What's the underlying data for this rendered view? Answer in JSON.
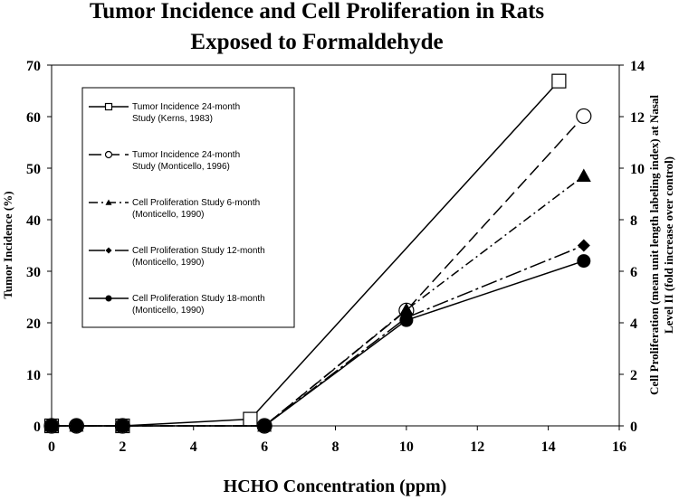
{
  "chart_data": {
    "type": "line",
    "title": [
      "Tumor Incidence and Cell Proliferation in Rats",
      "Exposed to Formaldehyde"
    ],
    "xlabel": "HCHO Concentration (ppm)",
    "ylabel": "Tumor Incidence (%)",
    "y2label": [
      "Cell Proliferation (mean unit length labeling index) at Nasal",
      "Level II (fold increase over control)"
    ],
    "xlim": [
      0,
      16
    ],
    "ylim": [
      0,
      70
    ],
    "y2lim": [
      0,
      14
    ],
    "xticks": [
      0,
      2,
      4,
      6,
      8,
      10,
      12,
      14,
      16
    ],
    "yticks": [
      0,
      10,
      20,
      30,
      40,
      50,
      60,
      70
    ],
    "y2ticks": [
      0,
      2,
      4,
      6,
      8,
      10,
      12,
      14
    ],
    "grid": false,
    "legend_position": "upper-left",
    "series": [
      {
        "name": "Tumor Incidence 24-month Study (Kerns, 1983)",
        "legend_lines": [
          "Tumor Incidence 24-month",
          "Study (Kerns, 1983)"
        ],
        "axis": "left",
        "marker": "square-open",
        "dash": "solid",
        "x": [
          0,
          2,
          5.6,
          14.3
        ],
        "y": [
          0,
          0,
          1.3,
          66.9
        ]
      },
      {
        "name": "Tumor Incidence 24-month Study (Monticello, 1996)",
        "legend_lines": [
          "Tumor Incidence 24-month",
          "Study (Monticello, 1996)"
        ],
        "axis": "left",
        "marker": "circle-open",
        "dash": "longdash",
        "x": [
          0,
          0.7,
          2,
          6,
          10,
          15
        ],
        "y": [
          0,
          0,
          0,
          0,
          22.4,
          60.1
        ]
      },
      {
        "name": "Cell Proliferation Study 6-month (Monticello, 1990)",
        "legend_lines": [
          "Cell Proliferation Study 6-month",
          "(Monticello, 1990)"
        ],
        "axis": "right",
        "marker": "triangle",
        "dash": "dashdot",
        "x": [
          0,
          0.7,
          2,
          6,
          10,
          15
        ],
        "y": [
          0,
          0,
          0,
          0,
          4.5,
          9.7
        ]
      },
      {
        "name": "Cell Proliferation Study 12-month (Monticello, 1990)",
        "legend_lines": [
          "Cell Proliferation Study 12-month",
          "(Monticello, 1990)"
        ],
        "axis": "right",
        "marker": "diamond",
        "dash": "longdashdot",
        "x": [
          0,
          0.7,
          2,
          6,
          10,
          15
        ],
        "y": [
          0,
          0,
          0,
          0,
          4.2,
          7.0
        ]
      },
      {
        "name": "Cell Proliferation Study 18-month (Monticello, 1990)",
        "legend_lines": [
          "Cell Proliferation Study 18-month",
          "(Monticello, 1990)"
        ],
        "axis": "right",
        "marker": "circle",
        "dash": "solid",
        "x": [
          0,
          0.7,
          2,
          6,
          10,
          15
        ],
        "y": [
          0,
          0,
          0,
          0,
          4.1,
          6.4
        ]
      }
    ]
  }
}
